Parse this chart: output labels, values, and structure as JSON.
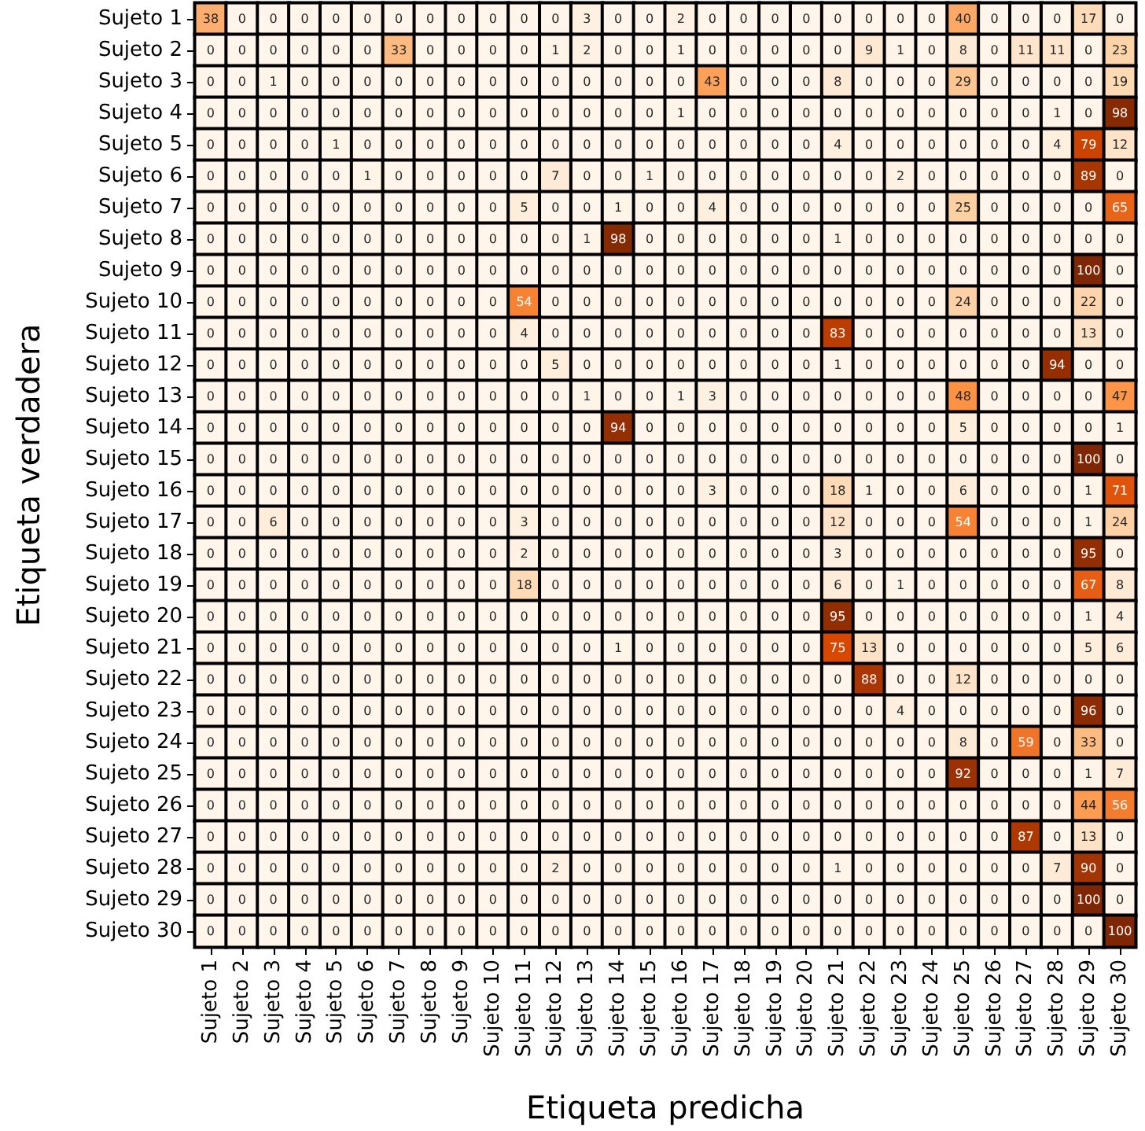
{
  "chart_data": {
    "type": "heatmap",
    "xlabel": "Etiqueta predicha",
    "ylabel": "Etiqueta verdadera",
    "data_labels": true,
    "colors": [
      "#fff5eb",
      "#fdd0a2",
      "#fd8d3c",
      "#d94801",
      "#7f2704"
    ],
    "categories": [
      "Sujeto 1",
      "Sujeto 2",
      "Sujeto 3",
      "Sujeto 4",
      "Sujeto 5",
      "Sujeto 6",
      "Sujeto 7",
      "Sujeto 8",
      "Sujeto 9",
      "Sujeto 10",
      "Sujeto 11",
      "Sujeto 12",
      "Sujeto 13",
      "Sujeto 14",
      "Sujeto 15",
      "Sujeto 16",
      "Sujeto 17",
      "Sujeto 18",
      "Sujeto 19",
      "Sujeto 20",
      "Sujeto 21",
      "Sujeto 22",
      "Sujeto 23",
      "Sujeto 24",
      "Sujeto 25",
      "Sujeto 26",
      "Sujeto 27",
      "Sujeto 28",
      "Sujeto 29",
      "Sujeto 30"
    ],
    "y_categories": [
      "Sujeto 1",
      "Sujeto 2",
      "Sujeto 3",
      "Sujeto 4",
      "Sujeto 5",
      "Sujeto 6",
      "Sujeto 7",
      "Sujeto 8",
      "Sujeto 9",
      "Sujeto 10",
      "Sujeto 11",
      "Sujeto 12",
      "Sujeto 13",
      "Sujeto 14",
      "Sujeto 15",
      "Sujeto 16",
      "Sujeto 17",
      "Sujeto 18",
      "Sujeto 19",
      "Sujeto 20",
      "Sujeto 21",
      "Sujeto 22",
      "Sujeto 23",
      "Sujeto 24",
      "Sujeto 25",
      "Sujeto 26",
      "Sujeto 27",
      "Sujeto 28",
      "Sujeto 29",
      "Sujeto 30"
    ],
    "cells": [
      [
        38,
        0,
        0,
        0,
        0,
        0,
        0,
        0,
        0,
        0,
        0,
        0,
        3,
        0,
        0,
        2,
        0,
        0,
        0,
        0,
        0,
        0,
        0,
        0,
        40,
        0,
        0,
        0,
        17,
        0
      ],
      [
        0,
        0,
        0,
        0,
        0,
        0,
        33,
        0,
        0,
        0,
        0,
        1,
        2,
        0,
        0,
        1,
        0,
        0,
        0,
        0,
        0,
        9,
        1,
        0,
        8,
        0,
        11,
        11,
        0,
        23
      ],
      [
        0,
        0,
        1,
        0,
        0,
        0,
        0,
        0,
        0,
        0,
        0,
        0,
        0,
        0,
        0,
        0,
        43,
        0,
        0,
        0,
        8,
        0,
        0,
        0,
        29,
        0,
        0,
        0,
        0,
        19
      ],
      [
        0,
        0,
        0,
        0,
        0,
        0,
        0,
        0,
        0,
        0,
        0,
        0,
        0,
        0,
        0,
        1,
        0,
        0,
        0,
        0,
        0,
        0,
        0,
        0,
        0,
        0,
        0,
        1,
        0,
        98
      ],
      [
        0,
        0,
        0,
        0,
        1,
        0,
        0,
        0,
        0,
        0,
        0,
        0,
        0,
        0,
        0,
        0,
        0,
        0,
        0,
        0,
        4,
        0,
        0,
        0,
        0,
        0,
        0,
        4,
        79,
        12
      ],
      [
        0,
        0,
        0,
        0,
        0,
        1,
        0,
        0,
        0,
        0,
        0,
        7,
        0,
        0,
        1,
        0,
        0,
        0,
        0,
        0,
        0,
        0,
        2,
        0,
        0,
        0,
        0,
        0,
        89,
        0
      ],
      [
        0,
        0,
        0,
        0,
        0,
        0,
        0,
        0,
        0,
        0,
        5,
        0,
        0,
        1,
        0,
        0,
        4,
        0,
        0,
        0,
        0,
        0,
        0,
        0,
        25,
        0,
        0,
        0,
        0,
        65
      ],
      [
        0,
        0,
        0,
        0,
        0,
        0,
        0,
        0,
        0,
        0,
        0,
        0,
        1,
        98,
        0,
        0,
        0,
        0,
        0,
        0,
        1,
        0,
        0,
        0,
        0,
        0,
        0,
        0,
        0,
        0
      ],
      [
        0,
        0,
        0,
        0,
        0,
        0,
        0,
        0,
        0,
        0,
        0,
        0,
        0,
        0,
        0,
        0,
        0,
        0,
        0,
        0,
        0,
        0,
        0,
        0,
        0,
        0,
        0,
        0,
        100,
        0
      ],
      [
        0,
        0,
        0,
        0,
        0,
        0,
        0,
        0,
        0,
        0,
        54,
        0,
        0,
        0,
        0,
        0,
        0,
        0,
        0,
        0,
        0,
        0,
        0,
        0,
        24,
        0,
        0,
        0,
        22,
        0
      ],
      [
        0,
        0,
        0,
        0,
        0,
        0,
        0,
        0,
        0,
        0,
        4,
        0,
        0,
        0,
        0,
        0,
        0,
        0,
        0,
        0,
        83,
        0,
        0,
        0,
        0,
        0,
        0,
        0,
        13,
        0
      ],
      [
        0,
        0,
        0,
        0,
        0,
        0,
        0,
        0,
        0,
        0,
        0,
        5,
        0,
        0,
        0,
        0,
        0,
        0,
        0,
        0,
        1,
        0,
        0,
        0,
        0,
        0,
        0,
        94,
        0,
        0
      ],
      [
        0,
        0,
        0,
        0,
        0,
        0,
        0,
        0,
        0,
        0,
        0,
        0,
        1,
        0,
        0,
        1,
        3,
        0,
        0,
        0,
        0,
        0,
        0,
        0,
        48,
        0,
        0,
        0,
        0,
        47
      ],
      [
        0,
        0,
        0,
        0,
        0,
        0,
        0,
        0,
        0,
        0,
        0,
        0,
        0,
        94,
        0,
        0,
        0,
        0,
        0,
        0,
        0,
        0,
        0,
        0,
        5,
        0,
        0,
        0,
        0,
        1
      ],
      [
        0,
        0,
        0,
        0,
        0,
        0,
        0,
        0,
        0,
        0,
        0,
        0,
        0,
        0,
        0,
        0,
        0,
        0,
        0,
        0,
        0,
        0,
        0,
        0,
        0,
        0,
        0,
        0,
        100,
        0
      ],
      [
        0,
        0,
        0,
        0,
        0,
        0,
        0,
        0,
        0,
        0,
        0,
        0,
        0,
        0,
        0,
        0,
        3,
        0,
        0,
        0,
        18,
        1,
        0,
        0,
        6,
        0,
        0,
        0,
        1,
        71
      ],
      [
        0,
        0,
        6,
        0,
        0,
        0,
        0,
        0,
        0,
        0,
        3,
        0,
        0,
        0,
        0,
        0,
        0,
        0,
        0,
        0,
        12,
        0,
        0,
        0,
        54,
        0,
        0,
        0,
        1,
        24
      ],
      [
        0,
        0,
        0,
        0,
        0,
        0,
        0,
        0,
        0,
        0,
        2,
        0,
        0,
        0,
        0,
        0,
        0,
        0,
        0,
        0,
        3,
        0,
        0,
        0,
        0,
        0,
        0,
        0,
        95,
        0
      ],
      [
        0,
        0,
        0,
        0,
        0,
        0,
        0,
        0,
        0,
        0,
        18,
        0,
        0,
        0,
        0,
        0,
        0,
        0,
        0,
        0,
        6,
        0,
        1,
        0,
        0,
        0,
        0,
        0,
        67,
        8
      ],
      [
        0,
        0,
        0,
        0,
        0,
        0,
        0,
        0,
        0,
        0,
        0,
        0,
        0,
        0,
        0,
        0,
        0,
        0,
        0,
        0,
        95,
        0,
        0,
        0,
        0,
        0,
        0,
        0,
        1,
        4
      ],
      [
        0,
        0,
        0,
        0,
        0,
        0,
        0,
        0,
        0,
        0,
        0,
        0,
        0,
        1,
        0,
        0,
        0,
        0,
        0,
        0,
        75,
        13,
        0,
        0,
        0,
        0,
        0,
        0,
        5,
        6
      ],
      [
        0,
        0,
        0,
        0,
        0,
        0,
        0,
        0,
        0,
        0,
        0,
        0,
        0,
        0,
        0,
        0,
        0,
        0,
        0,
        0,
        0,
        88,
        0,
        0,
        12,
        0,
        0,
        0,
        0,
        0
      ],
      [
        0,
        0,
        0,
        0,
        0,
        0,
        0,
        0,
        0,
        0,
        0,
        0,
        0,
        0,
        0,
        0,
        0,
        0,
        0,
        0,
        0,
        0,
        4,
        0,
        0,
        0,
        0,
        0,
        96,
        0
      ],
      [
        0,
        0,
        0,
        0,
        0,
        0,
        0,
        0,
        0,
        0,
        0,
        0,
        0,
        0,
        0,
        0,
        0,
        0,
        0,
        0,
        0,
        0,
        0,
        0,
        8,
        0,
        59,
        0,
        33,
        0
      ],
      [
        0,
        0,
        0,
        0,
        0,
        0,
        0,
        0,
        0,
        0,
        0,
        0,
        0,
        0,
        0,
        0,
        0,
        0,
        0,
        0,
        0,
        0,
        0,
        0,
        92,
        0,
        0,
        0,
        1,
        7
      ],
      [
        0,
        0,
        0,
        0,
        0,
        0,
        0,
        0,
        0,
        0,
        0,
        0,
        0,
        0,
        0,
        0,
        0,
        0,
        0,
        0,
        0,
        0,
        0,
        0,
        0,
        0,
        0,
        0,
        44,
        56
      ],
      [
        0,
        0,
        0,
        0,
        0,
        0,
        0,
        0,
        0,
        0,
        0,
        0,
        0,
        0,
        0,
        0,
        0,
        0,
        0,
        0,
        0,
        0,
        0,
        0,
        0,
        0,
        87,
        0,
        13,
        0
      ],
      [
        0,
        0,
        0,
        0,
        0,
        0,
        0,
        0,
        0,
        0,
        0,
        2,
        0,
        0,
        0,
        0,
        0,
        0,
        0,
        0,
        1,
        0,
        0,
        0,
        0,
        0,
        0,
        7,
        90,
        0
      ],
      [
        0,
        0,
        0,
        0,
        0,
        0,
        0,
        0,
        0,
        0,
        0,
        0,
        0,
        0,
        0,
        0,
        0,
        0,
        0,
        0,
        0,
        0,
        0,
        0,
        0,
        0,
        0,
        0,
        100,
        0
      ],
      [
        0,
        0,
        0,
        0,
        0,
        0,
        0,
        0,
        0,
        0,
        0,
        0,
        0,
        0,
        0,
        0,
        0,
        0,
        0,
        0,
        0,
        0,
        0,
        0,
        0,
        0,
        0,
        0,
        0,
        100
      ]
    ]
  }
}
